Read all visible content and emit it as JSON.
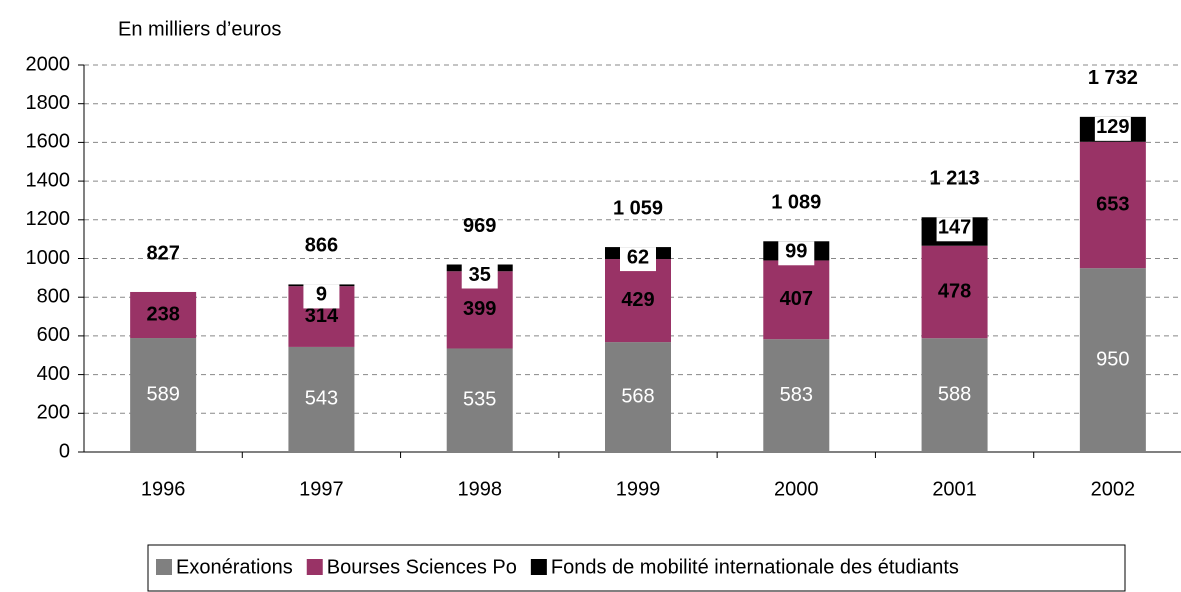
{
  "chart_data": {
    "type": "stacked_bar",
    "y_axis_label": "En milliers d’euros",
    "categories": [
      "1996",
      "1997",
      "1998",
      "1999",
      "2000",
      "2001",
      "2002"
    ],
    "series": [
      {
        "name": "Exonérations",
        "color": "#808080",
        "values": [
          589,
          543,
          535,
          568,
          583,
          588,
          950
        ]
      },
      {
        "name": "Bourses Sciences Po",
        "color": "#993366",
        "values": [
          238,
          314,
          399,
          429,
          407,
          478,
          653
        ]
      },
      {
        "name": "Fonds de mobilité internationale des étudiants",
        "color": "#000000",
        "values": [
          null,
          9,
          35,
          62,
          99,
          147,
          129
        ]
      }
    ],
    "totals": {
      "values": [
        827,
        866,
        969,
        1059,
        1089,
        1213,
        1732
      ],
      "value_labels": [
        "827",
        "866",
        "969",
        "1 059",
        "1 089",
        "1 213",
        "1 732"
      ]
    },
    "ylim": [
      0,
      2000
    ],
    "yticks": [
      0,
      200,
      400,
      600,
      800,
      1000,
      1200,
      1400,
      1600,
      1800,
      2000
    ],
    "grid": true,
    "legend": "bottom"
  }
}
